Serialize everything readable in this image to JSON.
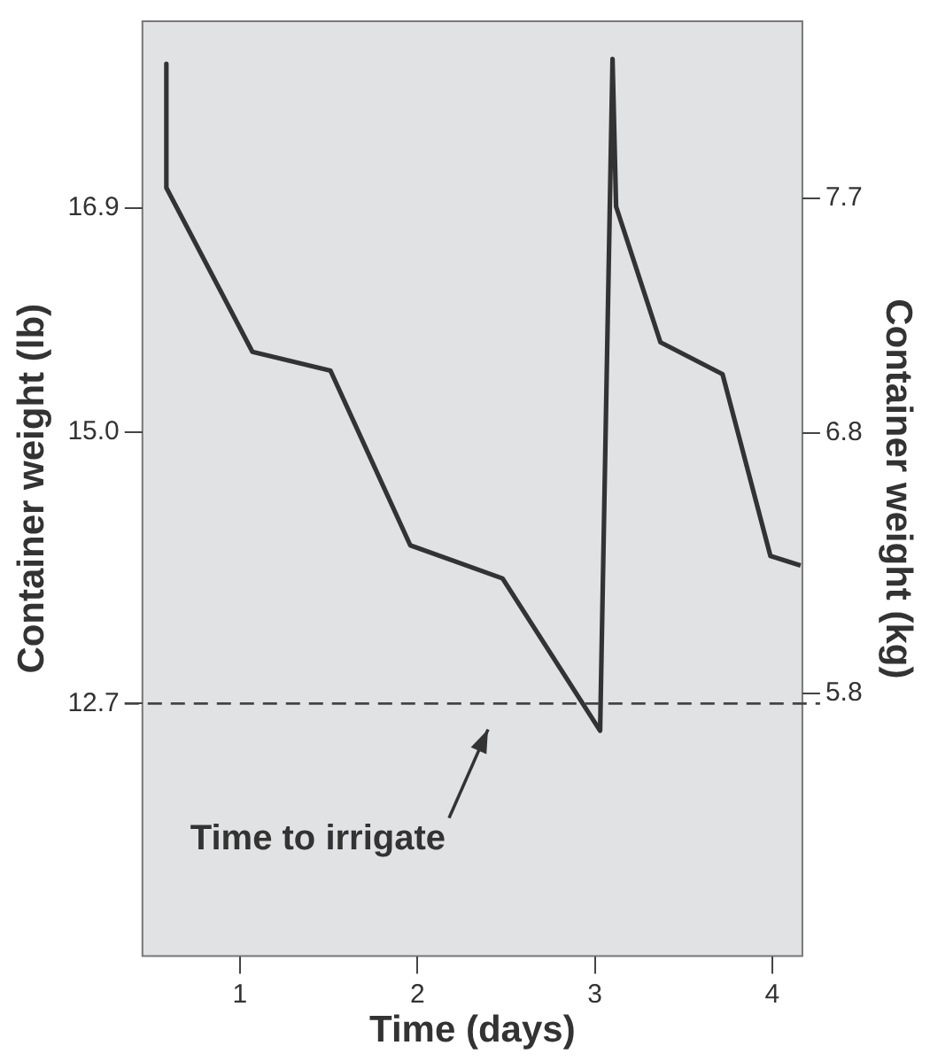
{
  "chart_data": {
    "type": "line",
    "xlabel": "Time (days)",
    "ylabel": "Container weight (lb)",
    "y2label": "Container weight (kg)",
    "x": [
      0.585,
      0.585,
      1.07,
      1.51,
      1.96,
      2.48,
      3.03,
      3.1,
      3.12,
      3.37,
      3.72,
      3.99,
      4.16
    ],
    "series": [
      {
        "color": "#333333",
        "values": [
          18.12,
          17.07,
          15.68,
          15.52,
          14.04,
          13.76,
          12.47,
          18.16,
          16.91,
          15.76,
          15.49,
          13.95,
          13.87
        ]
      }
    ],
    "xlim": [
      0.45,
      4.17
    ],
    "xticks": [
      1,
      2,
      3,
      4
    ],
    "ylim": [
      10.56,
      18.48
    ],
    "yticks": [
      16.9,
      {
        "value": 15,
        "label": "15.0"
      },
      12.7
    ],
    "y2lim": [
      4.79,
      8.38
    ],
    "y2ticks": [
      7.7,
      6.8,
      5.8
    ],
    "ref_lines": [
      {
        "axis": "y",
        "value": 12.7,
        "color": "#444444",
        "line_style": "dashed"
      }
    ],
    "annotations": [
      "Time to irrigate"
    ],
    "grid": false,
    "legend": false,
    "marker": "none",
    "line_style": "solid"
  }
}
